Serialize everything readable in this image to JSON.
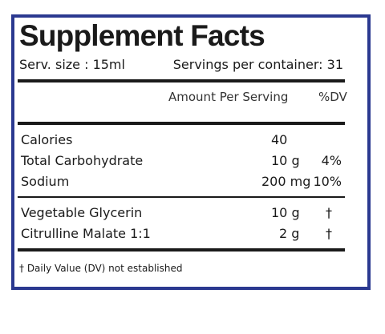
{
  "label": {
    "title": "Supplement Facts",
    "serving_size": "Serv. size : 15ml",
    "servings_per_container": "Servings per container: 31",
    "amount_header": "Amount Per Serving",
    "dv_header": "%DV",
    "group1": [
      {
        "name": "Calories",
        "amount": "40",
        "dv": ""
      },
      {
        "name": "Total Carbohydrate",
        "amount": "10 g",
        "dv": "4%"
      },
      {
        "name": "Sodium",
        "amount": "200 mg",
        "dv": "10%"
      }
    ],
    "group2": [
      {
        "name": "Vegetable Glycerin",
        "amount": "10 g",
        "dv": "†"
      },
      {
        "name": "Citrulline Malate 1:1",
        "amount": "2 g",
        "dv": "†"
      }
    ],
    "footnote": "† Daily Value (DV) not established",
    "border_color": "#2b3990"
  }
}
